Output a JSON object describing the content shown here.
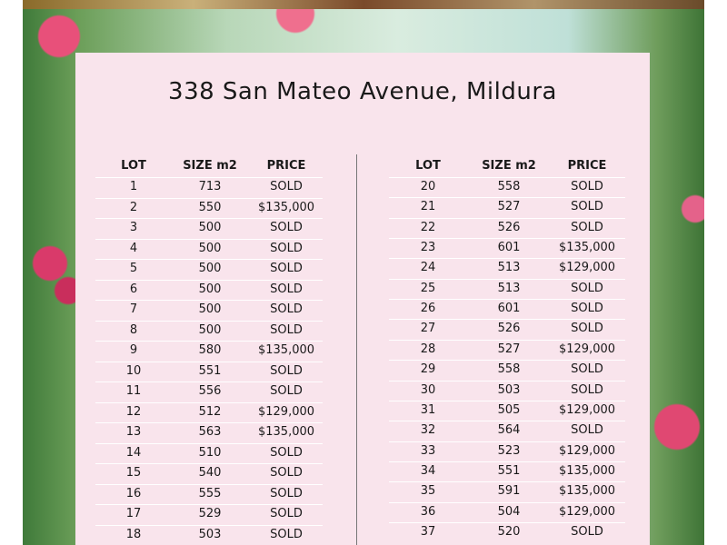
{
  "title": "338 San Mateo Avenue, Mildura",
  "tables": [
    {
      "header": [
        "LOT",
        "SIZE m2",
        "PRICE"
      ],
      "rows": [
        [
          "1",
          "713",
          "SOLD"
        ],
        [
          "2",
          "550",
          "$135,000"
        ],
        [
          "3",
          "500",
          "SOLD"
        ],
        [
          "4",
          "500",
          "SOLD"
        ],
        [
          "5",
          "500",
          "SOLD"
        ],
        [
          "6",
          "500",
          "SOLD"
        ],
        [
          "7",
          "500",
          "SOLD"
        ],
        [
          "8",
          "500",
          "SOLD"
        ],
        [
          "9",
          "580",
          "$135,000"
        ],
        [
          "10",
          "551",
          "SOLD"
        ],
        [
          "11",
          "556",
          "SOLD"
        ],
        [
          "12",
          "512",
          "$129,000"
        ],
        [
          "13",
          "563",
          "$135,000"
        ],
        [
          "14",
          "510",
          "SOLD"
        ],
        [
          "15",
          "540",
          "SOLD"
        ],
        [
          "16",
          "555",
          "SOLD"
        ],
        [
          "17",
          "529",
          "SOLD"
        ],
        [
          "18",
          "503",
          "SOLD"
        ]
      ]
    },
    {
      "header": [
        "LOT",
        "SIZE m2",
        "PRICE"
      ],
      "rows": [
        [
          "20",
          "558",
          "SOLD"
        ],
        [
          "21",
          "527",
          "SOLD"
        ],
        [
          "22",
          "526",
          "SOLD"
        ],
        [
          "23",
          "601",
          "$135,000"
        ],
        [
          "24",
          "513",
          "$129,000"
        ],
        [
          "25",
          "513",
          "SOLD"
        ],
        [
          "26",
          "601",
          "SOLD"
        ],
        [
          "27",
          "526",
          "SOLD"
        ],
        [
          "28",
          "527",
          "$129,000"
        ],
        [
          "29",
          "558",
          "SOLD"
        ],
        [
          "30",
          "503",
          "SOLD"
        ],
        [
          "31",
          "505",
          "$129,000"
        ],
        [
          "32",
          "564",
          "SOLD"
        ],
        [
          "33",
          "523",
          "$129,000"
        ],
        [
          "34",
          "551",
          "$135,000"
        ],
        [
          "35",
          "591",
          "$135,000"
        ],
        [
          "36",
          "504",
          "$129,000"
        ],
        [
          "37",
          "520",
          "SOLD"
        ]
      ]
    }
  ]
}
